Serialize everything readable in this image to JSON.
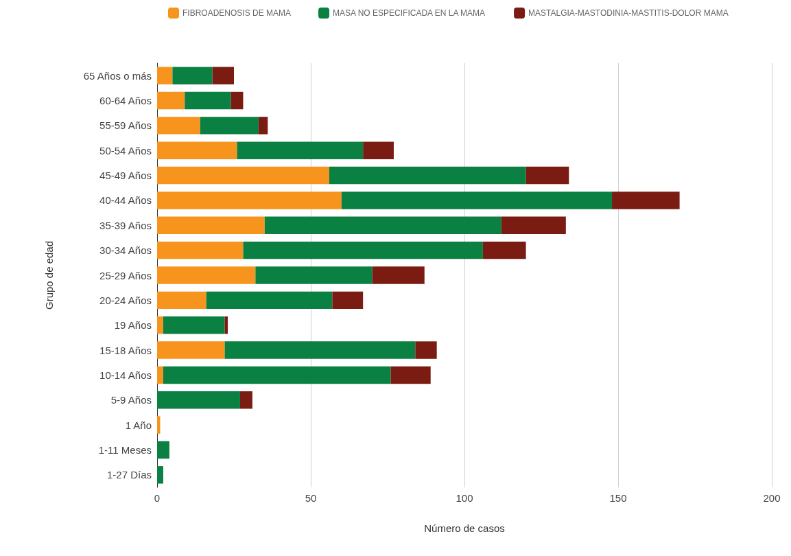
{
  "chart_data": {
    "type": "bar",
    "orientation": "horizontal",
    "stacked": true,
    "xlabel": "Número de casos",
    "ylabel": "Grupo de edad",
    "categories": [
      "65 Años o más",
      "60-64 Años",
      "55-59 Años",
      "50-54 Años",
      "45-49 Años",
      "40-44 Años",
      "35-39 Años",
      "30-34 Años",
      "25-29 Años",
      "20-24 Años",
      "19 Años",
      "15-18 Años",
      "10-14 Años",
      "5-9 Años",
      "1 Año",
      "1-11 Meses",
      "1-27 Días"
    ],
    "series": [
      {
        "name": "FIBROADENOSIS DE MAMA",
        "color": "#f7941d",
        "values": [
          5,
          9,
          14,
          26,
          56,
          60,
          35,
          28,
          32,
          16,
          2,
          22,
          2,
          0,
          1,
          0,
          0
        ]
      },
      {
        "name": "MASA NO ESPECIFICADA EN LA MAMA",
        "color": "#0a8043",
        "values": [
          13,
          15,
          19,
          41,
          64,
          88,
          77,
          78,
          38,
          41,
          20,
          62,
          74,
          27,
          0,
          4,
          2
        ]
      },
      {
        "name": "MASTALGIA-MASTODINIA-MASTITIS-DOLOR MAMA",
        "color": "#7b1c13",
        "values": [
          7,
          4,
          3,
          10,
          14,
          22,
          21,
          14,
          17,
          10,
          1,
          7,
          13,
          4,
          0,
          0,
          0
        ]
      }
    ],
    "xlim": [
      0,
      200
    ],
    "xticks": [
      0,
      50,
      100,
      150,
      200
    ],
    "grid": "x",
    "legend": "top"
  }
}
